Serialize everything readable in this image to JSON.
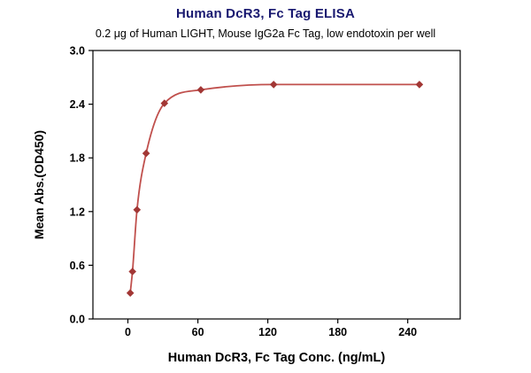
{
  "page": {
    "background_color": "#ffffff"
  },
  "chart_data": {
    "type": "line",
    "title": "Human DcR3, Fc Tag ELISA",
    "subtitle": "0.2 μg of Human LIGHT, Mouse IgG2a Fc Tag, low endotoxin per well",
    "xlabel": "Human DcR3, Fc Tag Conc. (ng/mL)",
    "ylabel": "Mean Abs.(OD450)",
    "x": [
      2,
      3.9,
      7.8,
      15.6,
      31.3,
      62.5,
      125,
      250
    ],
    "y": [
      0.29,
      0.53,
      1.22,
      1.85,
      2.41,
      2.56,
      2.62,
      2.62
    ],
    "xticks": [
      0,
      60,
      120,
      180,
      240
    ],
    "ytick_labels": [
      "0.0",
      "0.6",
      "1.2",
      "1.8",
      "2.4",
      "3.0"
    ],
    "xlim": [
      -30,
      285
    ],
    "ylim": [
      0,
      3
    ],
    "grid": false,
    "legend": "none",
    "marker": "diamond",
    "line_color": "#c0504d",
    "marker_color": "#a23735",
    "axis_color": "#000000",
    "title_color": "#191970"
  }
}
